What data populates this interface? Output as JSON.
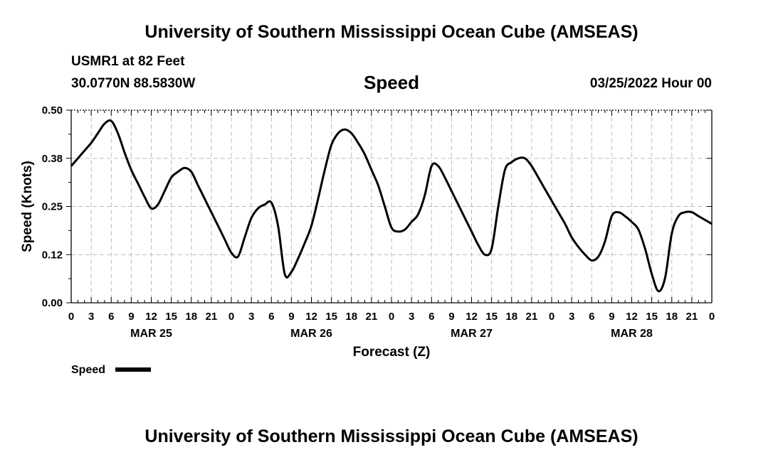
{
  "header": {
    "title": "University of Southern Mississippi Ocean Cube (AMSEAS)",
    "station": "USMR1 at 82 Feet",
    "location": "30.0770N  88.5830W",
    "chart_title": "Speed",
    "timestamp": "03/25/2022 Hour 00"
  },
  "footer": {
    "title": "University of Southern Mississippi Ocean Cube (AMSEAS)"
  },
  "colors": {
    "line": "#000000",
    "grid": "#bbbbbb",
    "background": "#ffffff"
  },
  "chart_data": {
    "type": "line",
    "title": "Speed",
    "xlabel": "Forecast (Z)",
    "ylabel": "Speed (Knots)",
    "xlim": [
      0,
      96
    ],
    "ylim": [
      0,
      0.5
    ],
    "y_ticks": [
      "0.00",
      "0.12",
      "0.25",
      "0.38",
      "0.50"
    ],
    "y_tick_values": [
      0,
      0.125,
      0.25,
      0.375,
      0.5
    ],
    "x_ticks": [
      "0",
      "3",
      "6",
      "9",
      "12",
      "15",
      "18",
      "21",
      "0",
      "3",
      "6",
      "9",
      "12",
      "15",
      "18",
      "21",
      "0",
      "3",
      "6",
      "9",
      "12",
      "15",
      "18",
      "21",
      "0",
      "3",
      "6",
      "9",
      "12",
      "15",
      "18",
      "21",
      "0"
    ],
    "date_labels": [
      "MAR 25",
      "MAR 26",
      "MAR 27",
      "MAR 28"
    ],
    "grid": true,
    "legend": {
      "position": "bottom-left",
      "entries": [
        "Speed"
      ]
    },
    "series": [
      {
        "name": "Speed",
        "x": [
          0,
          1,
          2,
          3,
          4,
          5,
          6,
          7,
          8,
          9,
          10,
          11,
          12,
          13,
          14,
          15,
          16,
          17,
          18,
          19,
          20,
          21,
          22,
          23,
          24,
          25,
          26,
          27,
          28,
          29,
          30,
          31,
          32,
          33,
          34,
          35,
          36,
          37,
          38,
          39,
          40,
          41,
          42,
          43,
          44,
          45,
          46,
          47,
          48,
          49,
          50,
          51,
          52,
          53,
          54,
          55,
          56,
          57,
          58,
          59,
          60,
          61,
          62,
          63,
          64,
          65,
          66,
          67,
          68,
          69,
          70,
          71,
          72,
          73,
          74,
          75,
          76,
          77,
          78,
          79,
          80,
          81,
          82,
          83,
          84,
          85,
          86,
          87,
          88,
          89,
          90,
          91,
          92,
          93,
          94,
          95,
          96
        ],
        "values": [
          0.355,
          0.375,
          0.395,
          0.415,
          0.44,
          0.465,
          0.472,
          0.44,
          0.39,
          0.345,
          0.31,
          0.275,
          0.245,
          0.255,
          0.29,
          0.325,
          0.34,
          0.35,
          0.34,
          0.305,
          0.27,
          0.235,
          0.2,
          0.165,
          0.13,
          0.12,
          0.17,
          0.22,
          0.245,
          0.255,
          0.26,
          0.2,
          0.075,
          0.08,
          0.115,
          0.155,
          0.2,
          0.27,
          0.345,
          0.41,
          0.44,
          0.45,
          0.44,
          0.415,
          0.385,
          0.345,
          0.305,
          0.25,
          0.195,
          0.185,
          0.19,
          0.21,
          0.23,
          0.28,
          0.355,
          0.355,
          0.325,
          0.29,
          0.255,
          0.22,
          0.185,
          0.15,
          0.125,
          0.14,
          0.25,
          0.345,
          0.365,
          0.375,
          0.375,
          0.355,
          0.325,
          0.295,
          0.265,
          0.235,
          0.205,
          0.17,
          0.145,
          0.125,
          0.11,
          0.12,
          0.16,
          0.225,
          0.235,
          0.225,
          0.21,
          0.19,
          0.14,
          0.075,
          0.03,
          0.065,
          0.18,
          0.225,
          0.235,
          0.235,
          0.225,
          0.215,
          0.205
        ]
      }
    ]
  }
}
